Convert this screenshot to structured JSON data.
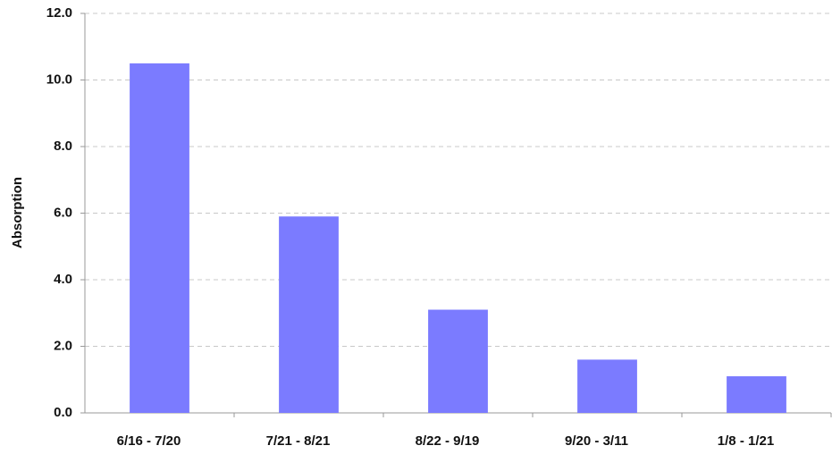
{
  "chart_data": {
    "type": "bar",
    "y_label": "Absorption",
    "categories": [
      "6/16 - 7/20",
      "7/21 - 8/21",
      "8/22 - 9/19",
      "9/20 - 3/11",
      "1/8 - 1/21"
    ],
    "values": [
      10.5,
      5.9,
      3.1,
      1.6,
      1.1
    ],
    "color": "#7b7bff",
    "ylim": [
      0,
      12
    ],
    "yticks": [
      {
        "value": 0,
        "label": "0.0"
      },
      {
        "value": 2,
        "label": "2.0"
      },
      {
        "value": 4,
        "label": "4.0"
      },
      {
        "value": 6,
        "label": "6.0"
      },
      {
        "value": 8,
        "label": "8.0"
      },
      {
        "value": 10,
        "label": "10.0"
      },
      {
        "value": 12,
        "label": "12.0"
      }
    ],
    "grid": true
  }
}
